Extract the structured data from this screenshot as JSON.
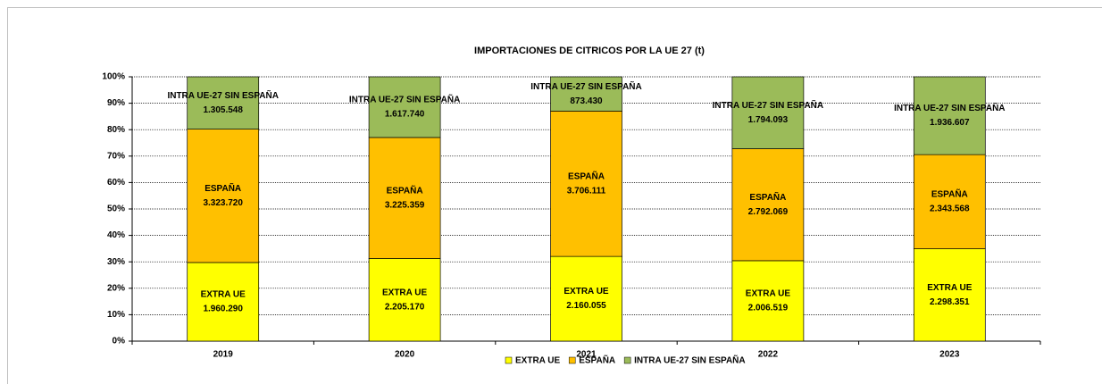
{
  "chart_data": {
    "type": "bar",
    "stacking": "percent",
    "title": "IMPORTACIONES DE CITRICOS POR LA UE 27 (t)",
    "categories": [
      "2019",
      "2020",
      "2021",
      "2022",
      "2023"
    ],
    "series": [
      {
        "name": "EXTRA UE",
        "color": "#ffff00",
        "values": [
          1960290,
          2205170,
          2160055,
          2006519,
          2298351
        ],
        "value_labels": [
          "1.960.290",
          "2.205.170",
          "2.160.055",
          "2.006.519",
          "2.298.351"
        ]
      },
      {
        "name": "ESPAÑA",
        "color": "#ffc000",
        "values": [
          3323720,
          3225359,
          3706111,
          2792069,
          2343568
        ],
        "value_labels": [
          "3.323.720",
          "3.225.359",
          "3.706.111",
          "2.792.069",
          "2.343.568"
        ]
      },
      {
        "name": "INTRA UE-27 SIN ESPAÑA",
        "color": "#9bbb59",
        "values": [
          1305548,
          1617740,
          873430,
          1794093,
          1936607
        ],
        "value_labels": [
          "1.305.548",
          "1.617.740",
          "873.430",
          "1.794.093",
          "1.936.607"
        ]
      }
    ],
    "ylim": [
      0,
      100
    ],
    "yticks": [
      {
        "value": 0,
        "label": "0%"
      },
      {
        "value": 10,
        "label": "10%"
      },
      {
        "value": 20,
        "label": "20%"
      },
      {
        "value": 30,
        "label": "30%"
      },
      {
        "value": 40,
        "label": "40%"
      },
      {
        "value": 50,
        "label": "50%"
      },
      {
        "value": 60,
        "label": "60%"
      },
      {
        "value": 70,
        "label": "70%"
      },
      {
        "value": 80,
        "label": "80%"
      },
      {
        "value": 90,
        "label": "90%"
      },
      {
        "value": 100,
        "label": "100%"
      }
    ],
    "grid": true,
    "legend": "bottom"
  }
}
